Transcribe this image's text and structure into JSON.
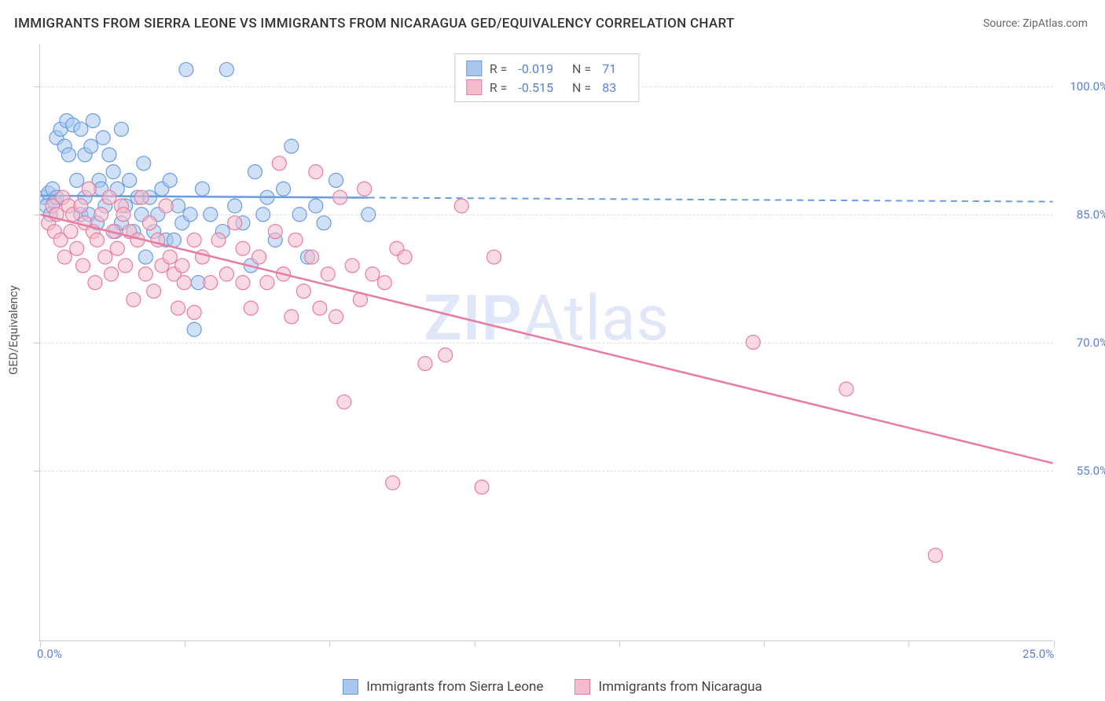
{
  "title": "IMMIGRANTS FROM SIERRA LEONE VS IMMIGRANTS FROM NICARAGUA GED/EQUIVALENCY CORRELATION CHART",
  "source": "Source: ZipAtlas.com",
  "ylabel": "GED/Equivalency",
  "watermark_a": "ZIP",
  "watermark_b": "Atlas",
  "chart": {
    "type": "scatter",
    "xlim": [
      0,
      25
    ],
    "ylim": [
      35,
      105
    ],
    "xticks": [
      0,
      25
    ],
    "xtick_labels": [
      "0.0%",
      "25.0%"
    ],
    "xtick_minor": [
      3.57,
      7.14,
      10.71,
      14.28,
      17.85,
      21.42
    ],
    "yticks": [
      55,
      70,
      85,
      100
    ],
    "ytick_labels": [
      "55.0%",
      "70.0%",
      "85.0%",
      "100.0%"
    ],
    "grid_color": "#dddddd",
    "axis_color": "#cccccc",
    "series": [
      {
        "name": "Immigrants from Sierra Leone",
        "color_fill": "#a9c6ef",
        "color_stroke": "#6a9de0",
        "r_value": "-0.019",
        "n_value": "71",
        "marker_radius": 9,
        "fill_opacity": 0.55,
        "regression": {
          "x1": 0,
          "y1": 87.2,
          "x2": 25,
          "y2": 86.5,
          "solid_until_x": 8.1
        },
        "points": [
          [
            0.1,
            87
          ],
          [
            0.15,
            86
          ],
          [
            0.2,
            87.5
          ],
          [
            0.25,
            85
          ],
          [
            0.3,
            88
          ],
          [
            0.35,
            86.5
          ],
          [
            0.4,
            87
          ],
          [
            0.4,
            94
          ],
          [
            0.5,
            95
          ],
          [
            0.6,
            93
          ],
          [
            0.65,
            96
          ],
          [
            0.7,
            92
          ],
          [
            0.8,
            95.5
          ],
          [
            0.9,
            89
          ],
          [
            1.0,
            95
          ],
          [
            1.0,
            85
          ],
          [
            1.1,
            92
          ],
          [
            1.1,
            87
          ],
          [
            1.2,
            85
          ],
          [
            1.25,
            93
          ],
          [
            1.3,
            96
          ],
          [
            1.4,
            84
          ],
          [
            1.45,
            89
          ],
          [
            1.5,
            88
          ],
          [
            1.55,
            94
          ],
          [
            1.6,
            86
          ],
          [
            1.7,
            92
          ],
          [
            1.8,
            90
          ],
          [
            1.85,
            83
          ],
          [
            1.9,
            88
          ],
          [
            2.0,
            95
          ],
          [
            2.0,
            84
          ],
          [
            2.1,
            86
          ],
          [
            2.2,
            89
          ],
          [
            2.3,
            83
          ],
          [
            2.4,
            87
          ],
          [
            2.5,
            85
          ],
          [
            2.55,
            91
          ],
          [
            2.6,
            80
          ],
          [
            2.7,
            87
          ],
          [
            2.8,
            83
          ],
          [
            2.9,
            85
          ],
          [
            3.0,
            88
          ],
          [
            3.1,
            82
          ],
          [
            3.2,
            89
          ],
          [
            3.3,
            82
          ],
          [
            3.4,
            86
          ],
          [
            3.5,
            84
          ],
          [
            3.6,
            102
          ],
          [
            3.7,
            85
          ],
          [
            3.8,
            71.5
          ],
          [
            3.9,
            77
          ],
          [
            4.0,
            88
          ],
          [
            4.2,
            85
          ],
          [
            4.5,
            83
          ],
          [
            4.6,
            102
          ],
          [
            4.8,
            86
          ],
          [
            5.0,
            84
          ],
          [
            5.2,
            79
          ],
          [
            5.3,
            90
          ],
          [
            5.5,
            85
          ],
          [
            5.6,
            87
          ],
          [
            5.8,
            82
          ],
          [
            6.0,
            88
          ],
          [
            6.2,
            93
          ],
          [
            6.4,
            85
          ],
          [
            6.6,
            80
          ],
          [
            6.8,
            86
          ],
          [
            7.0,
            84
          ],
          [
            7.3,
            89
          ],
          [
            8.1,
            85
          ]
        ]
      },
      {
        "name": "Immigrants from Nicaragua",
        "color_fill": "#f5bccb",
        "color_stroke": "#e87ca0",
        "r_value": "-0.515",
        "n_value": "83",
        "marker_radius": 9,
        "fill_opacity": 0.55,
        "regression": {
          "x1": 0,
          "y1": 85.0,
          "x2": 25,
          "y2": 55.8,
          "solid_until_x": 25
        },
        "points": [
          [
            0.2,
            84
          ],
          [
            0.3,
            86
          ],
          [
            0.35,
            83
          ],
          [
            0.4,
            85
          ],
          [
            0.5,
            82
          ],
          [
            0.55,
            87
          ],
          [
            0.6,
            80
          ],
          [
            0.7,
            86
          ],
          [
            0.75,
            83
          ],
          [
            0.8,
            85
          ],
          [
            0.9,
            81
          ],
          [
            1.0,
            86
          ],
          [
            1.05,
            79
          ],
          [
            1.1,
            84
          ],
          [
            1.2,
            88
          ],
          [
            1.3,
            83
          ],
          [
            1.35,
            77
          ],
          [
            1.4,
            82
          ],
          [
            1.5,
            85
          ],
          [
            1.6,
            80
          ],
          [
            1.7,
            87
          ],
          [
            1.75,
            78
          ],
          [
            1.8,
            83
          ],
          [
            1.9,
            81
          ],
          [
            2.0,
            86
          ],
          [
            2.05,
            85
          ],
          [
            2.1,
            79
          ],
          [
            2.2,
            83
          ],
          [
            2.3,
            75
          ],
          [
            2.4,
            82
          ],
          [
            2.5,
            87
          ],
          [
            2.6,
            78
          ],
          [
            2.7,
            84
          ],
          [
            2.8,
            76
          ],
          [
            2.9,
            82
          ],
          [
            3.0,
            79
          ],
          [
            3.1,
            86
          ],
          [
            3.2,
            80
          ],
          [
            3.3,
            78
          ],
          [
            3.4,
            74
          ],
          [
            3.5,
            79
          ],
          [
            3.55,
            77
          ],
          [
            3.8,
            82
          ],
          [
            3.8,
            73.5
          ],
          [
            4.0,
            80
          ],
          [
            4.2,
            77
          ],
          [
            4.4,
            82
          ],
          [
            4.6,
            78
          ],
          [
            4.8,
            84
          ],
          [
            5.0,
            77
          ],
          [
            5.0,
            81
          ],
          [
            5.2,
            74
          ],
          [
            5.4,
            80
          ],
          [
            5.6,
            77
          ],
          [
            5.8,
            83
          ],
          [
            5.9,
            91
          ],
          [
            6.0,
            78
          ],
          [
            6.2,
            73
          ],
          [
            6.3,
            82
          ],
          [
            6.5,
            76
          ],
          [
            6.7,
            80
          ],
          [
            6.8,
            90
          ],
          [
            6.9,
            74
          ],
          [
            7.1,
            78
          ],
          [
            7.3,
            73
          ],
          [
            7.4,
            87
          ],
          [
            7.5,
            63
          ],
          [
            7.7,
            79
          ],
          [
            7.9,
            75
          ],
          [
            8.0,
            88
          ],
          [
            8.2,
            78
          ],
          [
            8.5,
            77
          ],
          [
            8.7,
            53.5
          ],
          [
            8.8,
            81
          ],
          [
            9.0,
            80
          ],
          [
            9.5,
            67.5
          ],
          [
            10.0,
            68.5
          ],
          [
            10.4,
            86
          ],
          [
            10.9,
            53
          ],
          [
            11.2,
            80
          ],
          [
            17.6,
            70
          ],
          [
            19.9,
            64.5
          ],
          [
            22.1,
            45
          ]
        ]
      }
    ]
  },
  "legend_top_label_r": "R =",
  "legend_top_label_n": "N ="
}
